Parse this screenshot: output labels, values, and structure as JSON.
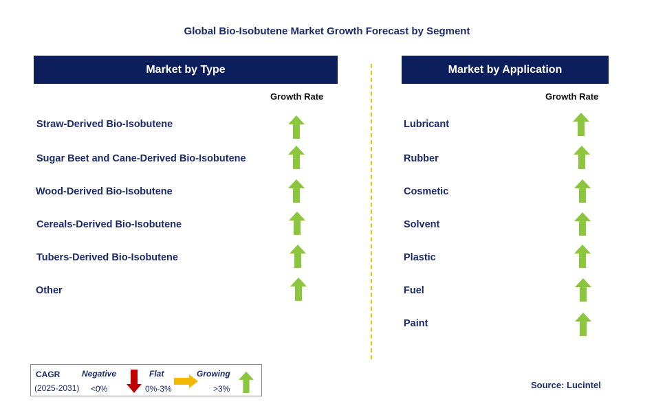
{
  "title": "Global Bio-Isobutene Market Growth Forecast by Segment",
  "left_panel": {
    "header": "Market by Type",
    "growth_label": "Growth Rate",
    "items": [
      {
        "label": "Straw-Derived Bio-Isobutene",
        "trend": "growing"
      },
      {
        "label": "Sugar Beet and Cane-Derived Bio-Isobutene",
        "trend": "growing"
      },
      {
        "label": "Wood-Derived Bio-Isobutene",
        "trend": "growing"
      },
      {
        "label": "Cereals-Derived Bio-Isobutene",
        "trend": "growing"
      },
      {
        "label": "Tubers-Derived Bio-Isobutene",
        "trend": "growing"
      },
      {
        "label": "Other",
        "trend": "growing"
      }
    ]
  },
  "right_panel": {
    "header": "Market by Application",
    "growth_label": "Growth Rate",
    "items": [
      {
        "label": "Lubricant",
        "trend": "growing"
      },
      {
        "label": "Rubber",
        "trend": "growing"
      },
      {
        "label": "Cosmetic",
        "trend": "growing"
      },
      {
        "label": "Solvent",
        "trend": "growing"
      },
      {
        "label": "Plastic",
        "trend": "growing"
      },
      {
        "label": "Fuel",
        "trend": "growing"
      },
      {
        "label": "Paint",
        "trend": "growing"
      }
    ]
  },
  "legend": {
    "cagr_label": "CAGR",
    "period": "(2025-2031)",
    "negative_label": "Negative",
    "negative_range": "<0%",
    "flat_label": "Flat",
    "flat_range": "0%-3%",
    "growing_label": "Growing",
    "growing_range": ">3%"
  },
  "source": "Source: Lucintel",
  "colors": {
    "header_bg": "#0c1f5c",
    "text": "#1b2a6b",
    "growing_arrow": "#8cc63f",
    "negative_arrow": "#c00000",
    "flat_arrow": "#f5b800",
    "divider": "#f2c200"
  },
  "icons": {
    "growing": "arrow-up-icon",
    "negative": "arrow-down-icon",
    "flat": "arrow-right-icon"
  }
}
